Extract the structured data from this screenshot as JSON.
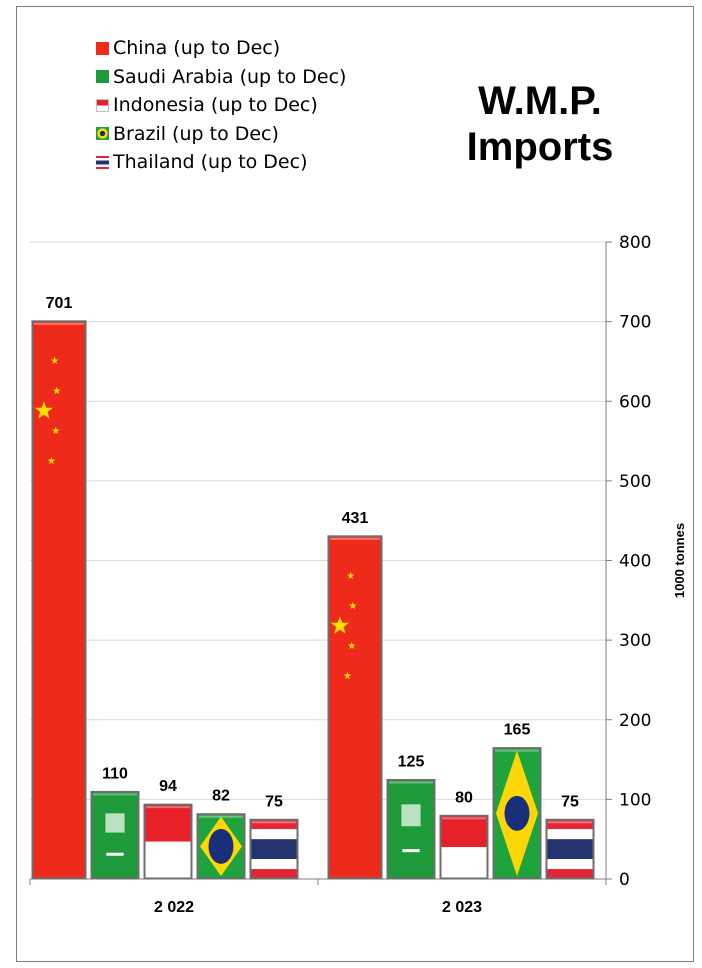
{
  "chart_data": {
    "type": "bar",
    "title": "W.M.P.\nImports",
    "title_lines": [
      "W.M.P.",
      "Imports"
    ],
    "categories": [
      "2 022",
      "2 023"
    ],
    "ylabel": "1000 tonnes",
    "ylim": [
      0,
      800
    ],
    "yticks": [
      0,
      100,
      200,
      300,
      400,
      500,
      600,
      700,
      800
    ],
    "grid": true,
    "legend_position": "top-left",
    "series": [
      {
        "name": "China (up to Dec)",
        "flag": "china",
        "values": [
          701,
          431
        ]
      },
      {
        "name": "Saudi Arabia (up to Dec)",
        "flag": "saudi-arabia",
        "values": [
          110,
          125
        ]
      },
      {
        "name": "Indonesia (up to Dec)",
        "flag": "indonesia",
        "values": [
          94,
          80
        ]
      },
      {
        "name": "Brazil (up to Dec)",
        "flag": "brazil",
        "values": [
          82,
          165
        ]
      },
      {
        "name": "Thailand (up to Dec)",
        "flag": "thailand",
        "values": [
          75,
          75
        ]
      }
    ]
  },
  "colors": {
    "china_red": "#ee2a1b",
    "china_star": "#ffde00",
    "saudi_green": "#1f9a3a",
    "indonesia_red": "#e8202a",
    "brazil_green": "#1ea33d",
    "brazil_yellow": "#fdd60a",
    "brazil_blue": "#1a2f7a",
    "thai_red": "#e32636",
    "thai_blue": "#24346e",
    "grid": "#d9d9d9",
    "axis": "#7f7f7f"
  }
}
